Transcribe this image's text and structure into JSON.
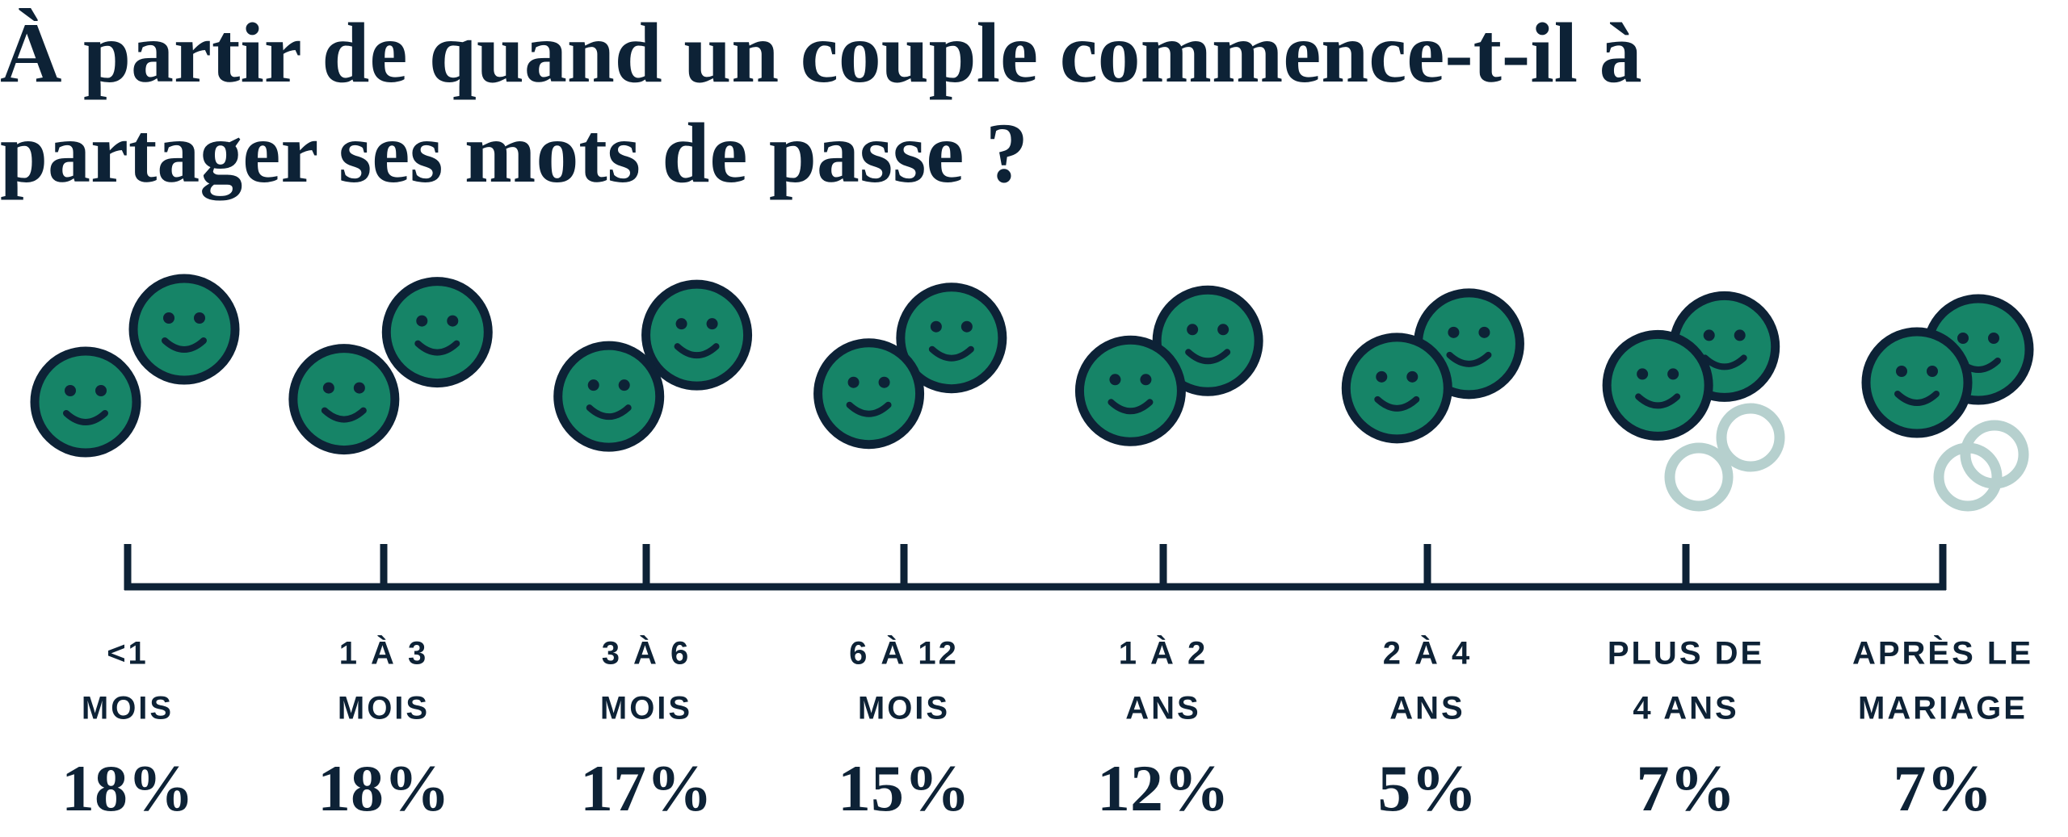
{
  "chart_data": {
    "type": "timeline",
    "title": "À partir de quand un couple commence-t-il à partager ses mots de passe ?",
    "categories": [
      [
        "<1",
        "MOIS"
      ],
      [
        "1 À 3",
        "MOIS"
      ],
      [
        "3 À 6",
        "MOIS"
      ],
      [
        "6 À 12",
        "MOIS"
      ],
      [
        "1 À 2",
        "ANS"
      ],
      [
        "2 À 4",
        "ANS"
      ],
      [
        "PLUS DE",
        "4 ANS"
      ],
      [
        "APRÈS LE",
        "MARIAGE"
      ]
    ],
    "values": [
      18,
      18,
      17,
      15,
      12,
      5,
      7,
      7
    ],
    "value_labels": [
      "18%",
      "18%",
      "17%",
      "15%",
      "12%",
      "5%",
      "7%",
      "7%"
    ],
    "color": "#168467"
  }
}
